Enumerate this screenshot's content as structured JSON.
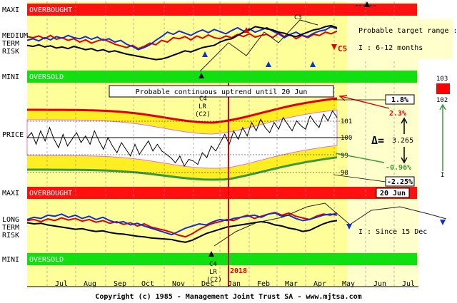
{
  "chart_data": {
    "type": "line",
    "panels": {
      "medium": {
        "band_top": "MAXI",
        "band_top_label": "OVERBOUGHT",
        "band_bottom": "MINI",
        "band_bottom_label": "OVERSOLD",
        "label_lines": [
          "MEDIUM",
          "TERM",
          "RISK"
        ],
        "target_text": "Probable target range :",
        "horizon_text": "I  : 6-12 months",
        "c5": "C5",
        "c3": "C3",
        "series": [
          {
            "color": "#e00000",
            "values": [
              62,
              60,
              63,
              58,
              64,
              57,
              60,
              55,
              58,
              52,
              56,
              50,
              54,
              57,
              53,
              48,
              45,
              42,
              46,
              40,
              44,
              50,
              47,
              55,
              52,
              60,
              58,
              62,
              56,
              63,
              59,
              65,
              60,
              58,
              63,
              60,
              66,
              62,
              67,
              61,
              64,
              66,
              60,
              68,
              62,
              66,
              58,
              64,
              60,
              66,
              64,
              70,
              67,
              72
            ]
          },
          {
            "color": "#1030d0",
            "values": [
              55,
              58,
              54,
              60,
              56,
              62,
              59,
              64,
              60,
              58,
              62,
              57,
              61,
              55,
              58,
              52,
              55,
              48,
              44,
              38,
              42,
              47,
              55,
              62,
              70,
              66,
              72,
              68,
              64,
              70,
              74,
              69,
              75,
              71,
              67,
              73,
              78,
              72,
              76,
              70,
              74,
              78,
              72,
              67,
              60,
              66,
              70,
              64,
              62,
              68,
              72,
              74,
              80,
              76
            ]
          },
          {
            "color": "#000000",
            "values": [
              46,
              44,
              47,
              43,
              45,
              41,
              43,
              40,
              44,
              41,
              38,
              40,
              36,
              38,
              34,
              36,
              33,
              30,
              28,
              26,
              24,
              22,
              20,
              21,
              24,
              28,
              32,
              36,
              34,
              38,
              42,
              44,
              46,
              52,
              56,
              58,
              64,
              70,
              74,
              80,
              78,
              76,
              74,
              70,
              68,
              64,
              62,
              66,
              70,
              74,
              76,
              80,
              82,
              78
            ]
          }
        ]
      },
      "price": {
        "label": "PRICE",
        "uptrend_text": "Probable continuous uptrend until 20 Jun",
        "c4": "C4",
        "lr": "LR",
        "c2": "(C2)",
        "tick_labels": [
          "101",
          "100",
          "99",
          "98"
        ],
        "box_up": "1.8%",
        "box_down": "-2.25%",
        "pct_up": "2.3%",
        "pct_down": "-0.96%",
        "delta_symbol": "Δ=",
        "delta_value": "3.265",
        "gauge_top": "103",
        "gauge_bottom": "102",
        "gauge_i": "I",
        "close_series": [
          100,
          100.3,
          99.6,
          100.4,
          99.8,
          100.6,
          99.9,
          99.4,
          100.2,
          99.5,
          99.9,
          100.3,
          99.7,
          100.1,
          99.6,
          100.4,
          99.8,
          99.3,
          100,
          99.5,
          99.1,
          99.7,
          99.3,
          98.9,
          99.6,
          99,
          99.4,
          99.8,
          99.2,
          99.6,
          99.2,
          99,
          98.8,
          98.5,
          98.9,
          98.3,
          98.7,
          98.6,
          98.4,
          99.1,
          98.8,
          99.5,
          99.2,
          99.7,
          100.2,
          99.6,
          100.4,
          99.9,
          100.6,
          100.1,
          100.9,
          100.4,
          101.1,
          100.6,
          100.3,
          100.9,
          100.5,
          101.2,
          100.8,
          100.4,
          101,
          100.7,
          100.5,
          101.3,
          100.9,
          100.6,
          101.4,
          101,
          101.6,
          101.2
        ]
      },
      "long": {
        "band_top": "MAXI",
        "band_top_label": "OVERBOUGHT",
        "band_bottom": "MINI",
        "band_bottom_label": "OVERSOLD",
        "label_lines": [
          "LONG",
          "TERM",
          "RISK"
        ],
        "since_text": "I  : Since 15 Dec",
        "date_box": "20 Jun",
        "c4": "C4",
        "lr": "LR",
        "c2": "(C2)",
        "series": [
          {
            "color": "#e00000",
            "values": [
              60,
              62,
              58,
              63,
              60,
              65,
              61,
              64,
              59,
              62,
              57,
              60,
              55,
              58,
              53,
              56,
              50,
              54,
              48,
              45,
              42,
              38,
              33,
              30,
              36,
              44,
              50,
              55,
              58,
              62,
              60,
              66,
              70,
              64,
              68,
              72,
              75,
              70,
              74,
              68,
              65,
              62,
              68,
              72,
              70,
              74
            ]
          },
          {
            "color": "#1030d0",
            "values": [
              62,
              66,
              64,
              70,
              68,
              72,
              66,
              70,
              64,
              68,
              62,
              66,
              60,
              56,
              58,
              52,
              55,
              50,
              46,
              42,
              38,
              34,
              40,
              46,
              50,
              54,
              52,
              58,
              62,
              60,
              64,
              66,
              68,
              70,
              66,
              72,
              74,
              68,
              70,
              64,
              60,
              62,
              66,
              70,
              72,
              70
            ]
          },
          {
            "color": "#000000",
            "values": [
              56,
              54,
              55,
              52,
              50,
              48,
              46,
              44,
              45,
              42,
              40,
              41,
              38,
              36,
              35,
              33,
              31,
              30,
              28,
              27,
              26,
              25,
              22,
              20,
              24,
              30,
              36,
              40,
              44,
              48,
              50,
              52,
              54,
              56,
              58,
              56,
              52,
              50,
              46,
              44,
              40,
              42,
              48,
              54,
              58,
              60
            ]
          }
        ]
      }
    },
    "x_axis": {
      "months": [
        "Jul",
        "Aug",
        "Sep",
        "Oct",
        "Nov",
        "Dec",
        "Jan",
        "Feb",
        "Mar",
        "Apr",
        "May",
        "Jun",
        "Jul"
      ],
      "year_marker": "2018"
    },
    "colors": {
      "overbought": "#ff1010",
      "oversold": "#10e010",
      "panel_bg": "#ffff99",
      "future_bg": "#ffffcc",
      "envelope_fill": "#ffee22",
      "upper_trend": "#e00000",
      "lower_trend": "#3a9a3a",
      "gauge": "#ff0000"
    },
    "copyright": "Copyright (c) 1985 - Management Joint Trust SA - www.mjtsa.com"
  }
}
